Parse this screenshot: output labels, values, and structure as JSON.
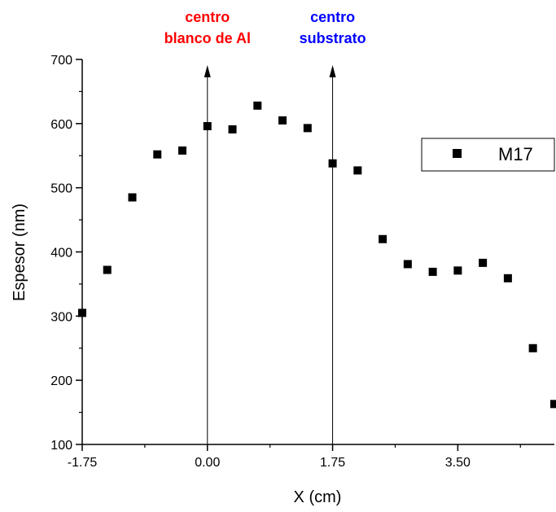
{
  "chart_data": {
    "type": "scatter",
    "xlabel": "X (cm)",
    "ylabel": "Espesor (nm)",
    "xlim": [
      -1.75,
      4.85
    ],
    "ylim": [
      100,
      700
    ],
    "xticks": [
      -1.75,
      0.0,
      1.75,
      3.5
    ],
    "xtick_labels": [
      "-1.75",
      "0.00",
      "1.75",
      "3.50"
    ],
    "yticks": [
      100,
      200,
      300,
      400,
      500,
      600,
      700
    ],
    "ytick_labels": [
      "100",
      "200",
      "300",
      "400",
      "500",
      "600",
      "700"
    ],
    "grid": false,
    "legend": {
      "position": "top-right"
    },
    "series": [
      {
        "name": "M17",
        "marker": "square",
        "color": "#000000",
        "points": [
          {
            "x": -1.75,
            "y": 305
          },
          {
            "x": -1.4,
            "y": 372
          },
          {
            "x": -1.05,
            "y": 485
          },
          {
            "x": -0.7,
            "y": 552
          },
          {
            "x": -0.35,
            "y": 558
          },
          {
            "x": 0.0,
            "y": 596
          },
          {
            "x": 0.35,
            "y": 591
          },
          {
            "x": 0.7,
            "y": 628
          },
          {
            "x": 1.05,
            "y": 605
          },
          {
            "x": 1.4,
            "y": 593
          },
          {
            "x": 1.75,
            "y": 538
          },
          {
            "x": 2.1,
            "y": 527
          },
          {
            "x": 2.45,
            "y": 420
          },
          {
            "x": 2.8,
            "y": 381
          },
          {
            "x": 3.15,
            "y": 369
          },
          {
            "x": 3.5,
            "y": 371
          },
          {
            "x": 3.85,
            "y": 383
          },
          {
            "x": 4.2,
            "y": 359
          },
          {
            "x": 4.55,
            "y": 250
          },
          {
            "x": 4.85,
            "y": 163
          }
        ]
      }
    ],
    "annotations": [
      {
        "x": 0.0,
        "lines": [
          "centro",
          "blanco de Al"
        ],
        "color": "#ff0000"
      },
      {
        "x": 1.75,
        "lines": [
          "centro",
          "substrato"
        ],
        "color": "#0000ff"
      }
    ]
  }
}
